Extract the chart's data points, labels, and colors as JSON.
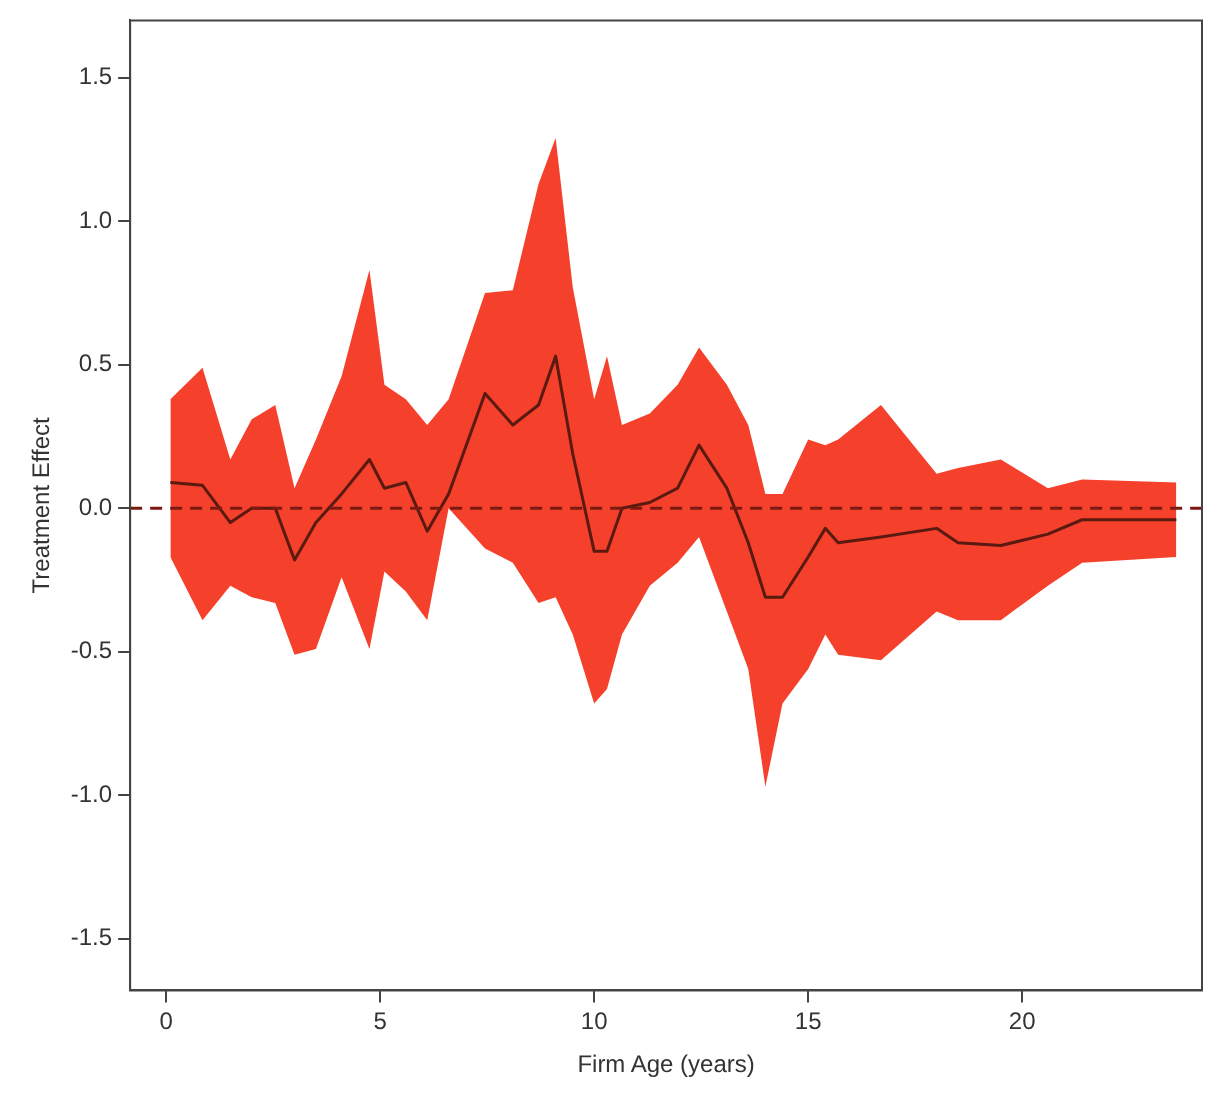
{
  "chart_data": {
    "type": "line",
    "xlabel": "Firm Age (years)",
    "ylabel": "Treatment Effect",
    "x": [
      0.1,
      0.85,
      1.5,
      2.0,
      2.55,
      3.0,
      3.5,
      4.1,
      4.75,
      5.1,
      5.6,
      6.1,
      6.6,
      7.45,
      8.1,
      8.7,
      9.1,
      9.5,
      10.0,
      10.3,
      10.65,
      11.3,
      11.95,
      12.45,
      13.1,
      13.6,
      14.0,
      14.4,
      15.0,
      15.4,
      15.7,
      16.7,
      18.0,
      18.5,
      19.5,
      20.6,
      21.4,
      23.6
    ],
    "series": [
      {
        "color": "#5a1a10",
        "values": [
          0.09,
          0.08,
          -0.05,
          0,
          0,
          -0.18,
          -0.05,
          0.05,
          0.17,
          0.07,
          0.09,
          -0.08,
          0.05,
          0.4,
          0.29,
          0.36,
          0.53,
          0.19,
          -0.15,
          -0.15,
          0,
          0.02,
          0.07,
          0.22,
          0.07,
          -0.12,
          -0.31,
          -0.31,
          -0.17,
          -0.07,
          -0.12,
          -0.1,
          -0.07,
          -0.12,
          -0.13,
          -0.09,
          -0.04,
          -0.04
        ],
        "upper": [
          0.38,
          0.49,
          0.17,
          0.31,
          0.36,
          0.07,
          0.24,
          0.46,
          0.83,
          0.43,
          0.38,
          0.29,
          0.38,
          0.75,
          0.76,
          1.13,
          1.29,
          0.77,
          0.38,
          0.53,
          0.29,
          0.33,
          0.43,
          0.56,
          0.43,
          0.29,
          0.05,
          0.05,
          0.24,
          0.22,
          0.24,
          0.36,
          0.12,
          0.14,
          0.17,
          0.07,
          0.1,
          0.09
        ],
        "lower": [
          -0.17,
          -0.39,
          -0.27,
          -0.31,
          -0.33,
          -0.51,
          -0.49,
          -0.24,
          -0.49,
          -0.22,
          -0.29,
          -0.39,
          0,
          -0.14,
          -0.19,
          -0.33,
          -0.31,
          -0.44,
          -0.68,
          -0.63,
          -0.44,
          -0.27,
          -0.19,
          -0.1,
          -0.36,
          -0.56,
          -0.97,
          -0.68,
          -0.56,
          -0.44,
          -0.51,
          -0.53,
          -0.36,
          -0.39,
          -0.39,
          -0.27,
          -0.19,
          -0.17
        ]
      }
    ],
    "xlim": [
      -0.84,
      24.2
    ],
    "xticks": [
      0,
      5,
      10,
      15,
      20
    ],
    "ylim": [
      -1.68,
      1.7
    ],
    "yticks": [
      -1.5,
      {
        "value": -1,
        "label": "-1.0"
      },
      -0.5,
      {
        "value": 0,
        "label": "0.0"
      },
      0.5,
      {
        "value": 1,
        "label": "1.0"
      },
      1.5
    ],
    "ref_lines": [
      {
        "axis": "y",
        "value": 0,
        "color": "#7a1a10",
        "line_style": "dashed"
      }
    ],
    "grid": false,
    "legend": false,
    "marker": "none",
    "line_style": "solid"
  }
}
